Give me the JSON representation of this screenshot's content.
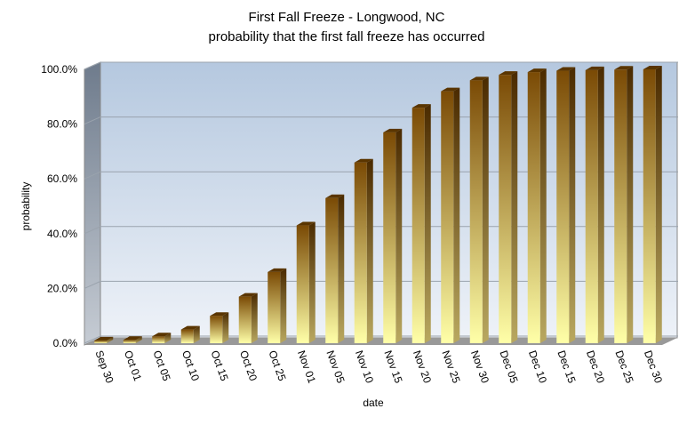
{
  "chart_data": {
    "type": "bar",
    "title": "First Fall Freeze  - Longwood,  NC",
    "subtitle": "probability  that  the  first fall freeze  has occurred",
    "x_label": "date",
    "y_label": "probability",
    "categories": [
      "Sep 30",
      "Oct 01",
      "Oct 05",
      "Oct 10",
      "Oct 15",
      "Oct 20",
      "Oct 25",
      "Nov 01",
      "Nov 05",
      "Nov 10",
      "Nov 15",
      "Nov 20",
      "Nov 25",
      "Nov 30",
      "Dec 05",
      "Dec 10",
      "Dec 15",
      "Dec 20",
      "Dec 25",
      "Dec 30"
    ],
    "values": [
      1,
      1.2,
      2.5,
      5,
      10,
      17,
      26,
      43,
      53,
      66,
      77,
      86,
      92,
      96,
      98,
      99,
      99.5,
      99.7,
      99.9,
      100
    ],
    "color": "#7a4a05",
    "ylim": [
      0,
      100
    ],
    "yticks": [
      {
        "value": 0,
        "label": "0.0%"
      },
      {
        "value": 20,
        "label": "20.0%"
      },
      {
        "value": 40,
        "label": "40.0%"
      },
      {
        "value": 60,
        "label": "60.0%"
      },
      {
        "value": 80,
        "label": "80.0%"
      },
      {
        "value": 100,
        "label": "100.0%"
      }
    ],
    "grid": true
  }
}
